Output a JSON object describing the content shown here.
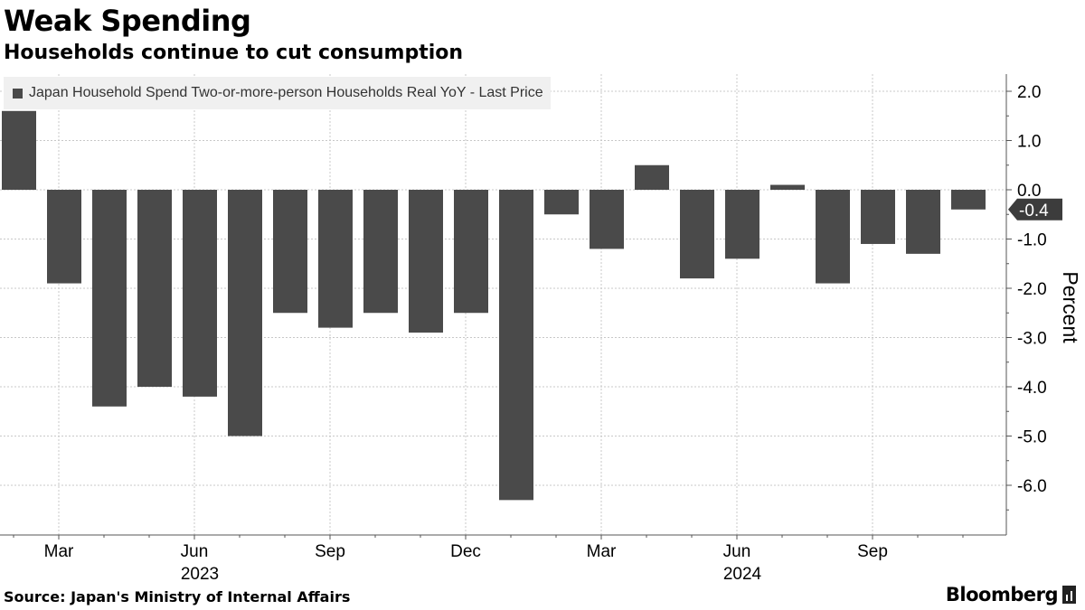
{
  "header": {
    "title": "Weak Spending",
    "subtitle": "Households continue to cut consumption"
  },
  "footer": {
    "source": "Source: Japan's Ministry of Internal Affairs",
    "brand": "Bloomberg"
  },
  "colors": {
    "bar": "#4a4a4a",
    "grid": "#c8c8c8",
    "axis": "#555555",
    "marker_bg": "#3c3c3c",
    "legend_bg": "#f0f0f0"
  },
  "chart_data": {
    "type": "bar",
    "title": "Weak Spending",
    "subtitle": "Households continue to cut consumption",
    "ylabel": "Percent",
    "xlabel": "",
    "ylim": [
      -7.0,
      2.3
    ],
    "yticks": [
      2.0,
      1.0,
      0.0,
      -1.0,
      -2.0,
      -3.0,
      -4.0,
      -5.0,
      -6.0
    ],
    "ytick_labels": [
      "2.0",
      "1.0",
      "0.0",
      "-1.0",
      "-2.0",
      "-3.0",
      "-4.0",
      "-5.0",
      "-6.0"
    ],
    "legend": "Japan Household Spend Two-or-more-person Households Real YoY - Last Price",
    "legend_position": "top-left",
    "axis_side": "right",
    "grid": true,
    "categories": [
      "2023-02",
      "2023-03",
      "2023-04",
      "2023-05",
      "2023-06",
      "2023-07",
      "2023-08",
      "2023-09",
      "2023-10",
      "2023-11",
      "2023-12",
      "2024-01",
      "2024-02",
      "2024-03",
      "2024-04",
      "2024-05",
      "2024-06",
      "2024-07",
      "2024-08",
      "2024-09",
      "2024-10",
      "2024-11"
    ],
    "values": [
      1.6,
      -1.9,
      -4.4,
      -4.0,
      -4.2,
      -5.0,
      -2.5,
      -2.8,
      -2.5,
      -2.9,
      -2.5,
      -6.3,
      -0.5,
      -1.2,
      0.5,
      -1.8,
      -1.4,
      0.1,
      -1.9,
      -1.1,
      -1.3,
      -0.4
    ],
    "x_tick_labels": [
      {
        "label": "Mar",
        "index": 1
      },
      {
        "label": "Jun",
        "index": 4
      },
      {
        "label": "Sep",
        "index": 7
      },
      {
        "label": "Dec",
        "index": 10
      },
      {
        "label": "Mar",
        "index": 13
      },
      {
        "label": "Jun",
        "index": 16
      },
      {
        "label": "Sep",
        "index": 19
      }
    ],
    "year_labels": [
      {
        "label": "2023",
        "index": 4
      },
      {
        "label": "2024",
        "index": 16
      }
    ],
    "last_value_label": "-0.4",
    "last_value": -0.4
  }
}
